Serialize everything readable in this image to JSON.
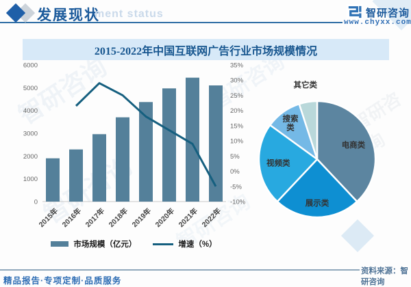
{
  "header": {
    "title": "发展现状",
    "ghost_text": "ment status",
    "brand": {
      "name": "智研咨询",
      "url": "www.chyxx.com"
    }
  },
  "chart_title": "2015-2022年中国互联网广告行业市场规模情况",
  "chart_data": [
    {
      "type": "bar",
      "title": "2015-2022年中国互联网广告行业市场规模情况",
      "categories": [
        "2015年",
        "2016年",
        "2017年",
        "2018年",
        "2019年",
        "2020年",
        "2021年",
        "2022年"
      ],
      "series": [
        {
          "name": "市场规模（亿元）",
          "type": "bar",
          "axis": "left",
          "values": [
            1900,
            2290,
            2960,
            3700,
            4370,
            4970,
            5440,
            5100
          ],
          "color": "#54809a"
        },
        {
          "name": "增速（%）",
          "type": "line",
          "axis": "right",
          "values": [
            null,
            21.5,
            29,
            25,
            18,
            13.5,
            9,
            -5
          ],
          "color": "#155f7f"
        }
      ],
      "left_axis": {
        "min": 0,
        "max": 6000,
        "step": 1000,
        "ticks": [
          "0",
          "1000",
          "2000",
          "3000",
          "4000",
          "5000",
          "6000"
        ]
      },
      "right_axis": {
        "min": -10,
        "max": 35,
        "step": 5,
        "suffix": "%",
        "ticks": [
          "-10%",
          "-5%",
          "0%",
          "5%",
          "10%",
          "15%",
          "20%",
          "25%",
          "30%",
          "35%"
        ]
      },
      "grid": false,
      "legend_position": "bottom"
    },
    {
      "type": "pie",
      "start_angle_deg": 0,
      "direction": "clockwise",
      "slices": [
        {
          "label": "电商类",
          "value": 38,
          "color": "#5c85a0",
          "label_r": 0.67
        },
        {
          "label": "展示类",
          "value": 24,
          "color": "#0e8fd2",
          "label_r": 0.75
        },
        {
          "label": "视频类",
          "value": 23,
          "color": "#28a9e0",
          "label_r": 0.67
        },
        {
          "label": "搜索类",
          "value": 10,
          "color": "#74b9e6",
          "label_r": 0.78,
          "two_line": true
        },
        {
          "label": "其它类",
          "value": 5,
          "color": "#b9d8da",
          "label_r": 1.3,
          "outside": true
        }
      ]
    }
  ],
  "legend": [
    {
      "label": "市场规模（亿元）",
      "swatch": "bar"
    },
    {
      "label": "增速（%）",
      "swatch": "line"
    }
  ],
  "footer": {
    "source": "资料来源：智研咨询",
    "tagline": "精品报告·专项定制·品质服务"
  },
  "watermark": {
    "text": "智研咨询"
  },
  "colors": {
    "accent_blue": "#2e6da4",
    "title_band_bg": "#d7e9f8",
    "title_text": "#17568f",
    "bar": "#54809a",
    "line": "#155f7f",
    "axis_text": "#666666"
  }
}
